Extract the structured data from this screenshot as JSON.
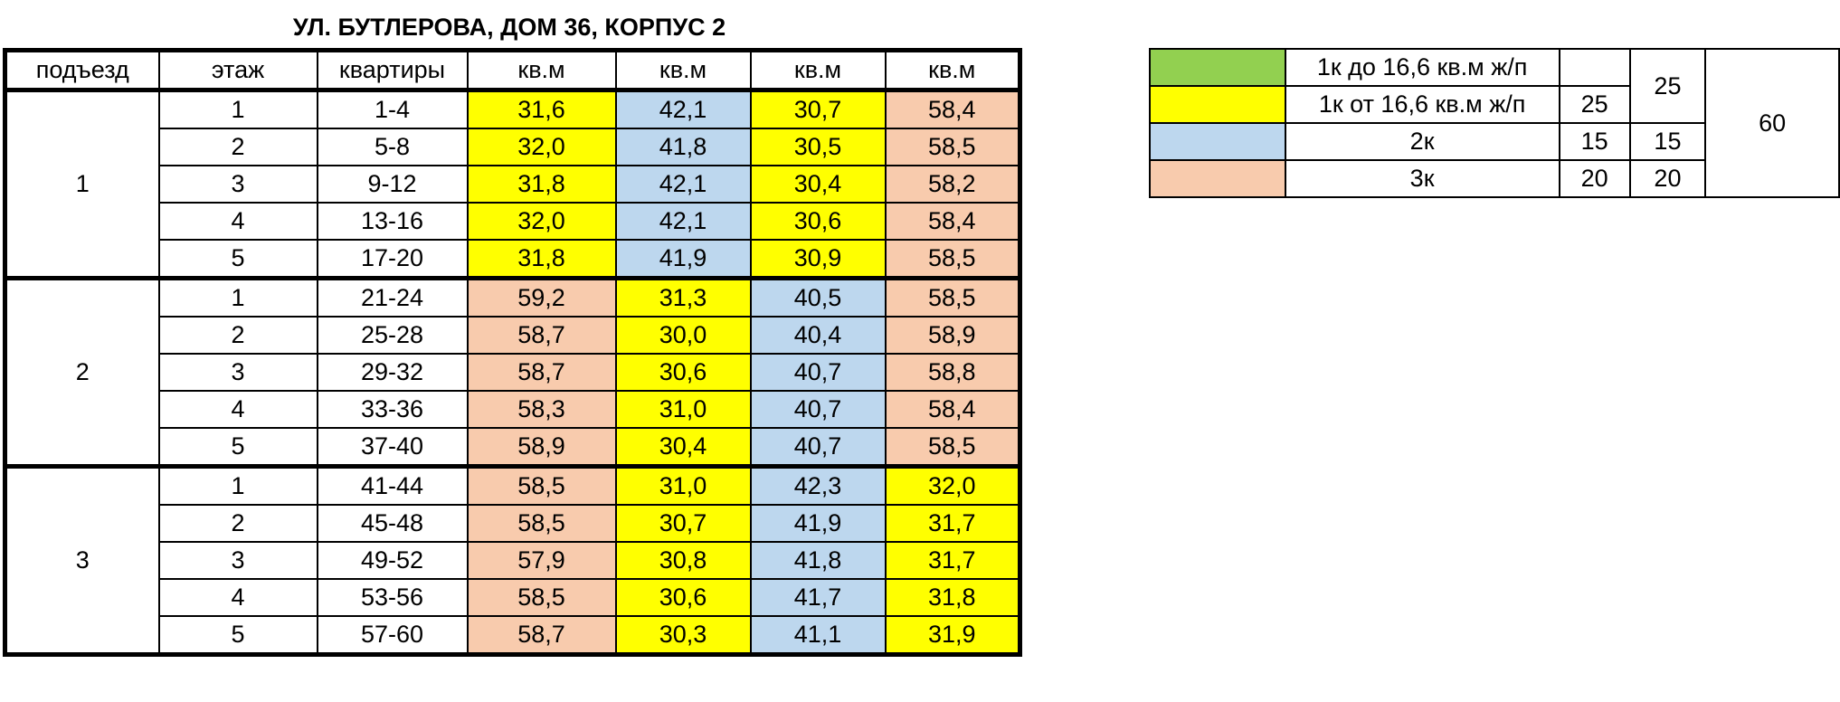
{
  "title": "УЛ. БУТЛЕРОВА, ДОМ 36, КОРПУС 2",
  "colors": {
    "yellow": "#ffff00",
    "blue": "#bdd7ee",
    "peach": "#f8cbad",
    "green": "#92d050"
  },
  "headers": [
    "подъезд",
    "этаж",
    "квартиры",
    "кв.м",
    "кв.м",
    "кв.м",
    "кв.м"
  ],
  "entrances": [
    {
      "label": "1",
      "floors": [
        {
          "floor": "1",
          "apts": "1-4",
          "areas": [
            {
              "v": "31,6",
              "c": "yellow"
            },
            {
              "v": "42,1",
              "c": "blue"
            },
            {
              "v": "30,7",
              "c": "yellow"
            },
            {
              "v": "58,4",
              "c": "peach"
            }
          ]
        },
        {
          "floor": "2",
          "apts": "5-8",
          "areas": [
            {
              "v": "32,0",
              "c": "yellow"
            },
            {
              "v": "41,8",
              "c": "blue"
            },
            {
              "v": "30,5",
              "c": "yellow"
            },
            {
              "v": "58,5",
              "c": "peach"
            }
          ]
        },
        {
          "floor": "3",
          "apts": "9-12",
          "areas": [
            {
              "v": "31,8",
              "c": "yellow"
            },
            {
              "v": "42,1",
              "c": "blue"
            },
            {
              "v": "30,4",
              "c": "yellow"
            },
            {
              "v": "58,2",
              "c": "peach"
            }
          ]
        },
        {
          "floor": "4",
          "apts": "13-16",
          "areas": [
            {
              "v": "32,0",
              "c": "yellow"
            },
            {
              "v": "42,1",
              "c": "blue"
            },
            {
              "v": "30,6",
              "c": "yellow"
            },
            {
              "v": "58,4",
              "c": "peach"
            }
          ]
        },
        {
          "floor": "5",
          "apts": "17-20",
          "areas": [
            {
              "v": "31,8",
              "c": "yellow"
            },
            {
              "v": "41,9",
              "c": "blue"
            },
            {
              "v": "30,9",
              "c": "yellow"
            },
            {
              "v": "58,5",
              "c": "peach"
            }
          ]
        }
      ]
    },
    {
      "label": "2",
      "floors": [
        {
          "floor": "1",
          "apts": "21-24",
          "areas": [
            {
              "v": "59,2",
              "c": "peach"
            },
            {
              "v": "31,3",
              "c": "yellow"
            },
            {
              "v": "40,5",
              "c": "blue"
            },
            {
              "v": "58,5",
              "c": "peach"
            }
          ]
        },
        {
          "floor": "2",
          "apts": "25-28",
          "areas": [
            {
              "v": "58,7",
              "c": "peach"
            },
            {
              "v": "30,0",
              "c": "yellow"
            },
            {
              "v": "40,4",
              "c": "blue"
            },
            {
              "v": "58,9",
              "c": "peach"
            }
          ]
        },
        {
          "floor": "3",
          "apts": "29-32",
          "areas": [
            {
              "v": "58,7",
              "c": "peach"
            },
            {
              "v": "30,6",
              "c": "yellow"
            },
            {
              "v": "40,7",
              "c": "blue"
            },
            {
              "v": "58,8",
              "c": "peach"
            }
          ]
        },
        {
          "floor": "4",
          "apts": "33-36",
          "areas": [
            {
              "v": "58,3",
              "c": "peach"
            },
            {
              "v": "31,0",
              "c": "yellow"
            },
            {
              "v": "40,7",
              "c": "blue"
            },
            {
              "v": "58,4",
              "c": "peach"
            }
          ]
        },
        {
          "floor": "5",
          "apts": "37-40",
          "areas": [
            {
              "v": "58,9",
              "c": "peach"
            },
            {
              "v": "30,4",
              "c": "yellow"
            },
            {
              "v": "40,7",
              "c": "blue"
            },
            {
              "v": "58,5",
              "c": "peach"
            }
          ]
        }
      ]
    },
    {
      "label": "3",
      "floors": [
        {
          "floor": "1",
          "apts": "41-44",
          "areas": [
            {
              "v": "58,5",
              "c": "peach"
            },
            {
              "v": "31,0",
              "c": "yellow"
            },
            {
              "v": "42,3",
              "c": "blue"
            },
            {
              "v": "32,0",
              "c": "yellow"
            }
          ]
        },
        {
          "floor": "2",
          "apts": "45-48",
          "areas": [
            {
              "v": "58,5",
              "c": "peach"
            },
            {
              "v": "30,7",
              "c": "yellow"
            },
            {
              "v": "41,9",
              "c": "blue"
            },
            {
              "v": "31,7",
              "c": "yellow"
            }
          ]
        },
        {
          "floor": "3",
          "apts": "49-52",
          "areas": [
            {
              "v": "57,9",
              "c": "peach"
            },
            {
              "v": "30,8",
              "c": "yellow"
            },
            {
              "v": "41,8",
              "c": "blue"
            },
            {
              "v": "31,7",
              "c": "yellow"
            }
          ]
        },
        {
          "floor": "4",
          "apts": "53-56",
          "areas": [
            {
              "v": "58,5",
              "c": "peach"
            },
            {
              "v": "30,6",
              "c": "yellow"
            },
            {
              "v": "41,7",
              "c": "blue"
            },
            {
              "v": "31,8",
              "c": "yellow"
            }
          ]
        },
        {
          "floor": "5",
          "apts": "57-60",
          "areas": [
            {
              "v": "58,7",
              "c": "peach"
            },
            {
              "v": "30,3",
              "c": "yellow"
            },
            {
              "v": "41,1",
              "c": "blue"
            },
            {
              "v": "31,9",
              "c": "yellow"
            }
          ]
        }
      ]
    }
  ],
  "legend": {
    "rows": [
      {
        "color": "green",
        "label": "1к до 16,6 кв.м ж/п",
        "count": ""
      },
      {
        "color": "yellow",
        "label": "1к от 16,6 кв.м ж/п",
        "count": "25"
      },
      {
        "color": "blue",
        "label": "2к",
        "count": "15",
        "subtotal": "15"
      },
      {
        "color": "peach",
        "label": "3к",
        "count": "20",
        "subtotal": "20"
      }
    ],
    "onek_subtotal": "25",
    "grand_total": "60"
  }
}
